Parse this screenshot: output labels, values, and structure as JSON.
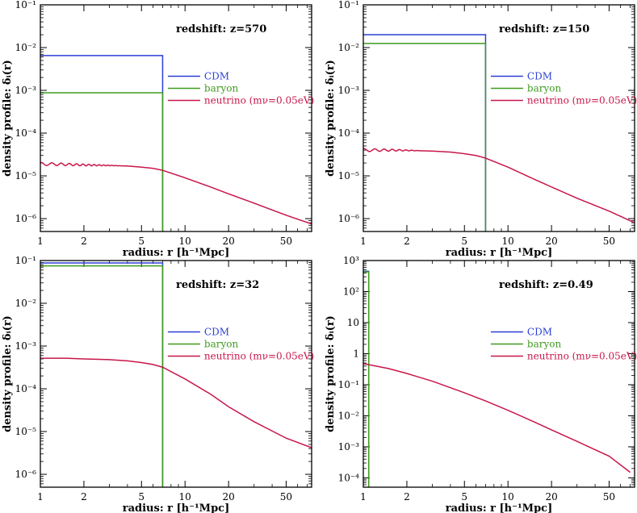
{
  "figure": {
    "shared": {
      "xlabel": "radius: r [h⁻¹Mpc]",
      "ylabel": "density profile: δᵢ(r)",
      "legend": [
        {
          "label": "CDM",
          "color": "#2b3fd6"
        },
        {
          "label": "baryon",
          "color": "#3f9b1e"
        },
        {
          "label": "neutrino (mν=0.05eV)",
          "color": "#c8174a"
        }
      ]
    }
  },
  "chart_data": [
    {
      "type": "line",
      "title": "redshift: z=570",
      "xscale": "log",
      "yscale": "log",
      "xlim": [
        1,
        75
      ],
      "ylim": [
        5e-07,
        0.1
      ],
      "xticks": [
        1,
        2,
        5,
        10,
        20,
        50
      ],
      "xtick_labels": [
        "1",
        "2",
        "5",
        "10",
        "20",
        "50"
      ],
      "yticks": [
        1e-06,
        1e-05,
        0.0001,
        0.001,
        0.01,
        0.1
      ],
      "ytick_labels": [
        "10⁻⁶",
        "10⁻⁵",
        "10⁻⁴",
        "10⁻³",
        "10⁻²",
        "10⁻¹"
      ],
      "legend_position": "center-right",
      "series": [
        {
          "name": "CDM",
          "color": "#2b3fd6",
          "x": [
            1,
            7,
            7
          ],
          "y": [
            0.0065,
            0.0065,
            5e-07
          ]
        },
        {
          "name": "baryon",
          "color": "#3f9b1e",
          "x": [
            1,
            7,
            7
          ],
          "y": [
            0.00088,
            0.00088,
            5e-07
          ]
        },
        {
          "name": "neutrino (mν=0.05eV)",
          "color": "#c8174a",
          "x": [
            1,
            1.5,
            2,
            3,
            4,
            5,
            6,
            7,
            10,
            15,
            20,
            30,
            50,
            75
          ],
          "y": [
            1.9e-05,
            1.85e-05,
            1.8e-05,
            1.75e-05,
            1.7e-05,
            1.6e-05,
            1.5e-05,
            1.35e-05,
            9e-06,
            5.5e-06,
            3.8e-06,
            2.3e-06,
            1.2e-06,
            7.5e-07
          ],
          "oscillating_until": 3.5
        }
      ]
    },
    {
      "type": "line",
      "title": "redshift: z=150",
      "xscale": "log",
      "yscale": "log",
      "xlim": [
        1,
        75
      ],
      "ylim": [
        5e-07,
        0.1
      ],
      "xticks": [
        1,
        2,
        5,
        10,
        20,
        50
      ],
      "xtick_labels": [
        "1",
        "2",
        "5",
        "10",
        "20",
        "50"
      ],
      "yticks": [
        1e-06,
        1e-05,
        0.0001,
        0.001,
        0.01,
        0.1
      ],
      "ytick_labels": [
        "10⁻⁶",
        "10⁻⁵",
        "10⁻⁴",
        "10⁻³",
        "10⁻²",
        "10⁻¹"
      ],
      "legend_position": "center-right",
      "series": [
        {
          "name": "CDM",
          "color": "#2b3fd6",
          "x": [
            1,
            7,
            7
          ],
          "y": [
            0.02,
            0.02,
            5e-07
          ]
        },
        {
          "name": "baryon",
          "color": "#3f9b1e",
          "x": [
            1,
            7,
            7
          ],
          "y": [
            0.0125,
            0.0125,
            5e-07
          ]
        },
        {
          "name": "neutrino (mν=0.05eV)",
          "color": "#c8174a",
          "x": [
            1,
            1.5,
            2,
            3,
            4,
            5,
            6,
            7,
            10,
            15,
            20,
            30,
            50,
            75
          ],
          "y": [
            4e-05,
            4e-05,
            3.95e-05,
            3.8e-05,
            3.6e-05,
            3.3e-05,
            3e-05,
            2.6e-05,
            1.6e-05,
            8.5e-06,
            5.5e-06,
            3e-06,
            1.5e-06,
            8e-07
          ],
          "oscillating_until": 2.5
        }
      ]
    },
    {
      "type": "line",
      "title": "redshift: z=32",
      "xscale": "log",
      "yscale": "log",
      "xlim": [
        1,
        75
      ],
      "ylim": [
        5e-07,
        0.1
      ],
      "xticks": [
        1,
        2,
        5,
        10,
        20,
        50
      ],
      "xtick_labels": [
        "1",
        "2",
        "5",
        "10",
        "20",
        "50"
      ],
      "yticks": [
        1e-06,
        1e-05,
        0.0001,
        0.001,
        0.01,
        0.1
      ],
      "ytick_labels": [
        "10⁻⁶",
        "10⁻⁵",
        "10⁻⁴",
        "10⁻³",
        "10⁻²",
        "10⁻¹"
      ],
      "legend_position": "center-right",
      "series": [
        {
          "name": "CDM",
          "color": "#2b3fd6",
          "x": [
            1,
            7,
            7
          ],
          "y": [
            0.088,
            0.088,
            5e-07
          ]
        },
        {
          "name": "baryon",
          "color": "#3f9b1e",
          "x": [
            1,
            7,
            7
          ],
          "y": [
            0.075,
            0.075,
            5e-07
          ]
        },
        {
          "name": "neutrino (mν=0.05eV)",
          "color": "#c8174a",
          "x": [
            1,
            1.5,
            2,
            3,
            4,
            5,
            6,
            7,
            10,
            15,
            20,
            30,
            50,
            75
          ],
          "y": [
            0.00052,
            0.00052,
            0.0005,
            0.00048,
            0.00045,
            0.00041,
            0.00037,
            0.00032,
            0.00017,
            7.5e-05,
            3.8e-05,
            1.7e-05,
            7e-06,
            4.2e-06
          ]
        }
      ]
    },
    {
      "type": "line",
      "title": "redshift: z=0.49",
      "xscale": "log",
      "yscale": "log",
      "xlim": [
        1,
        75
      ],
      "ylim": [
        5e-05,
        1000
      ],
      "xticks": [
        1,
        2,
        5,
        10,
        20,
        50
      ],
      "xtick_labels": [
        "1",
        "2",
        "5",
        "10",
        "20",
        "50"
      ],
      "yticks": [
        0.0001,
        0.001,
        0.01,
        0.1,
        1,
        10,
        100,
        1000
      ],
      "ytick_labels": [
        "10⁻⁴",
        "10⁻³",
        "10⁻²",
        "10⁻¹",
        "1",
        "10",
        "10²",
        "10³"
      ],
      "legend_position": "center-right",
      "series": [
        {
          "name": "CDM",
          "color": "#2b3fd6",
          "x": [
            1,
            1.09,
            1.09
          ],
          "y": [
            450,
            450,
            5e-05
          ]
        },
        {
          "name": "baryon",
          "color": "#3f9b1e",
          "x": [
            1,
            1.09,
            1.09
          ],
          "y": [
            430,
            430,
            5e-05
          ]
        },
        {
          "name": "neutrino (mν=0.05eV)",
          "color": "#c8174a",
          "x": [
            1,
            1.5,
            2,
            3,
            5,
            7,
            10,
            15,
            20,
            30,
            50,
            70
          ],
          "y": [
            0.48,
            0.33,
            0.23,
            0.13,
            0.055,
            0.03,
            0.015,
            0.0065,
            0.0035,
            0.0015,
            0.0005,
            0.00015
          ]
        }
      ]
    }
  ]
}
